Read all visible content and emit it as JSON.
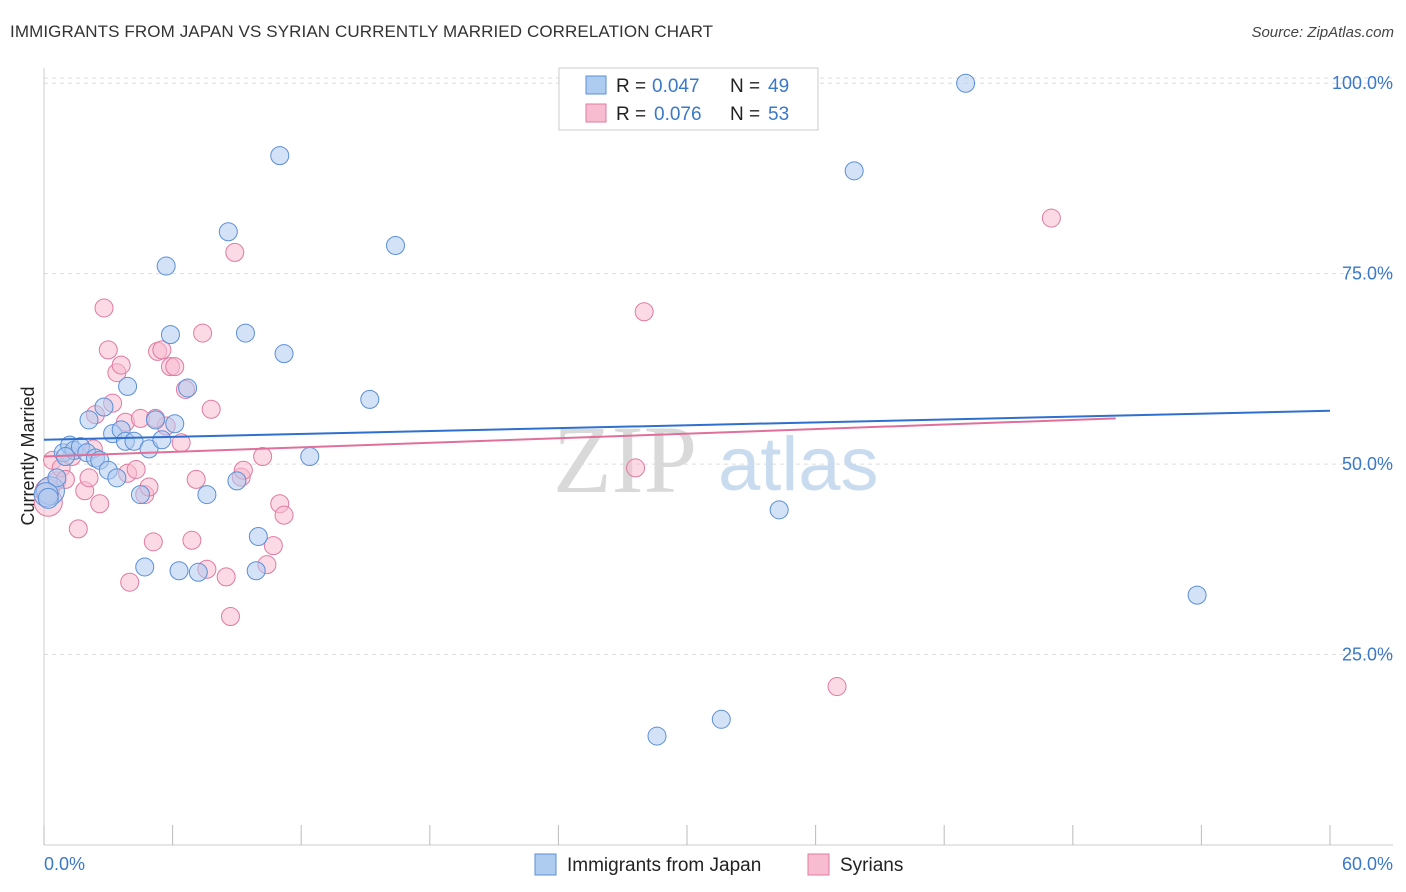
{
  "header": {
    "title": "IMMIGRANTS FROM JAPAN VS SYRIAN CURRENTLY MARRIED CORRELATION CHART",
    "source": "Source: ZipAtlas.com"
  },
  "watermark": {
    "zip": "ZIP",
    "atlas": "atlas"
  },
  "legend": {
    "r_label": "R =",
    "n_label": "N =",
    "entries": [
      {
        "r": "0.047",
        "n": "49"
      },
      {
        "r": "0.076",
        "n": "53"
      }
    ]
  },
  "colors": {
    "blue_fill": "#aecbf0",
    "blue_stroke": "#5b8fd6",
    "blue_line": "#2f6fcf",
    "pink_fill": "#f7bcd0",
    "pink_stroke": "#e07aa0",
    "pink_line": "#e0709a"
  },
  "chart_data": {
    "type": "scatter",
    "title": "IMMIGRANTS FROM JAPAN VS SYRIAN CURRENTLY MARRIED CORRELATION CHART",
    "xlabel": "",
    "ylabel": "Currently Married",
    "xlim": [
      0,
      60
    ],
    "ylim": [
      0,
      102
    ],
    "x_tick_labels": [
      "0.0%",
      "60.0%"
    ],
    "y_ticks": [
      25,
      50,
      75,
      100
    ],
    "y_tick_labels": [
      "25.0%",
      "50.0%",
      "75.0%",
      "100.0%"
    ],
    "grid": true,
    "legend_position": "top-center",
    "series": [
      {
        "name": "Immigrants from Japan",
        "color": "#aecbf0",
        "trend": {
          "x": [
            0,
            60
          ],
          "y": [
            53.2,
            57.0
          ]
        },
        "points": [
          [
            0.3,
            46.5
          ],
          [
            0.6,
            48.2
          ],
          [
            0.9,
            51.5
          ],
          [
            1.2,
            52.5
          ],
          [
            1.4,
            51.8
          ],
          [
            1.7,
            52.3
          ],
          [
            2.0,
            51.5
          ],
          [
            2.1,
            55.8
          ],
          [
            2.4,
            50.8
          ],
          [
            2.6,
            50.5
          ],
          [
            2.8,
            57.5
          ],
          [
            3.0,
            49.2
          ],
          [
            3.2,
            54.0
          ],
          [
            3.4,
            48.2
          ],
          [
            3.6,
            54.5
          ],
          [
            3.9,
            60.2
          ],
          [
            3.8,
            53.0
          ],
          [
            4.2,
            53.0
          ],
          [
            4.5,
            46.0
          ],
          [
            4.7,
            36.5
          ],
          [
            4.9,
            52.0
          ],
          [
            5.2,
            55.8
          ],
          [
            5.5,
            53.2
          ],
          [
            5.7,
            76.0
          ],
          [
            5.9,
            67.0
          ],
          [
            6.1,
            55.3
          ],
          [
            6.3,
            36.0
          ],
          [
            6.7,
            60.0
          ],
          [
            7.2,
            35.8
          ],
          [
            7.6,
            46.0
          ],
          [
            8.6,
            80.5
          ],
          [
            9.0,
            47.8
          ],
          [
            9.4,
            67.2
          ],
          [
            9.9,
            36.0
          ],
          [
            10.0,
            40.5
          ],
          [
            11.0,
            90.5
          ],
          [
            11.2,
            64.5
          ],
          [
            12.4,
            51.0
          ],
          [
            15.2,
            58.5
          ],
          [
            16.4,
            78.7
          ],
          [
            28.6,
            14.3
          ],
          [
            31.6,
            16.5
          ],
          [
            34.3,
            44.0
          ],
          [
            37.8,
            88.5
          ],
          [
            43.0,
            100.0
          ],
          [
            53.8,
            32.8
          ],
          [
            0.1,
            46.0
          ],
          [
            0.2,
            45.5
          ],
          [
            1.0,
            51.0
          ]
        ],
        "sizes": [
          14,
          9,
          9,
          9,
          9,
          9,
          9,
          9,
          9,
          9,
          9,
          9,
          9,
          9,
          9,
          9,
          9,
          9,
          9,
          9,
          9,
          9,
          9,
          9,
          9,
          9,
          9,
          9,
          9,
          9,
          9,
          9,
          9,
          9,
          9,
          9,
          9,
          9,
          9,
          9,
          9,
          9,
          9,
          9,
          9,
          9,
          12,
          10,
          9
        ]
      },
      {
        "name": "Syrians",
        "color": "#f7bcd0",
        "trend": {
          "x": [
            0,
            50
          ],
          "y": [
            51.0,
            56.0
          ]
        },
        "points": [
          [
            0.2,
            45.0
          ],
          [
            0.4,
            50.5
          ],
          [
            0.6,
            47.8
          ],
          [
            0.8,
            49.5
          ],
          [
            1.0,
            48.0
          ],
          [
            1.3,
            51.0
          ],
          [
            1.6,
            41.5
          ],
          [
            1.9,
            46.5
          ],
          [
            2.1,
            48.2
          ],
          [
            2.3,
            52.0
          ],
          [
            2.4,
            56.5
          ],
          [
            2.6,
            44.8
          ],
          [
            2.8,
            70.5
          ],
          [
            3.0,
            65.0
          ],
          [
            3.2,
            58.0
          ],
          [
            3.4,
            62.0
          ],
          [
            3.6,
            63.0
          ],
          [
            3.8,
            55.5
          ],
          [
            3.9,
            48.8
          ],
          [
            4.0,
            34.5
          ],
          [
            4.3,
            49.3
          ],
          [
            4.5,
            56.0
          ],
          [
            4.7,
            46.0
          ],
          [
            4.9,
            47.0
          ],
          [
            5.1,
            39.8
          ],
          [
            5.3,
            64.8
          ],
          [
            5.5,
            65.0
          ],
          [
            5.7,
            55.0
          ],
          [
            5.9,
            62.8
          ],
          [
            6.1,
            62.8
          ],
          [
            6.4,
            52.8
          ],
          [
            6.6,
            59.8
          ],
          [
            6.9,
            40.0
          ],
          [
            7.1,
            48.0
          ],
          [
            7.4,
            67.2
          ],
          [
            7.6,
            36.2
          ],
          [
            7.8,
            57.2
          ],
          [
            8.5,
            35.2
          ],
          [
            8.7,
            30.0
          ],
          [
            8.9,
            77.8
          ],
          [
            9.2,
            48.3
          ],
          [
            9.3,
            49.2
          ],
          [
            10.2,
            51.0
          ],
          [
            10.4,
            36.8
          ],
          [
            10.7,
            39.3
          ],
          [
            11.0,
            44.8
          ],
          [
            11.2,
            43.3
          ],
          [
            5.2,
            56.0
          ],
          [
            27.6,
            49.5
          ],
          [
            28.0,
            70.0
          ],
          [
            37.0,
            20.8
          ],
          [
            47.0,
            82.3
          ],
          [
            0.15,
            46.5
          ]
        ],
        "sizes": [
          14,
          9,
          9,
          9,
          9,
          9,
          9,
          9,
          9,
          9,
          9,
          9,
          9,
          9,
          9,
          9,
          9,
          9,
          9,
          9,
          9,
          9,
          9,
          9,
          9,
          9,
          9,
          9,
          9,
          9,
          9,
          9,
          9,
          9,
          9,
          9,
          9,
          9,
          9,
          9,
          9,
          9,
          9,
          9,
          9,
          9,
          9,
          9,
          9,
          9,
          9,
          9,
          12
        ]
      }
    ]
  }
}
